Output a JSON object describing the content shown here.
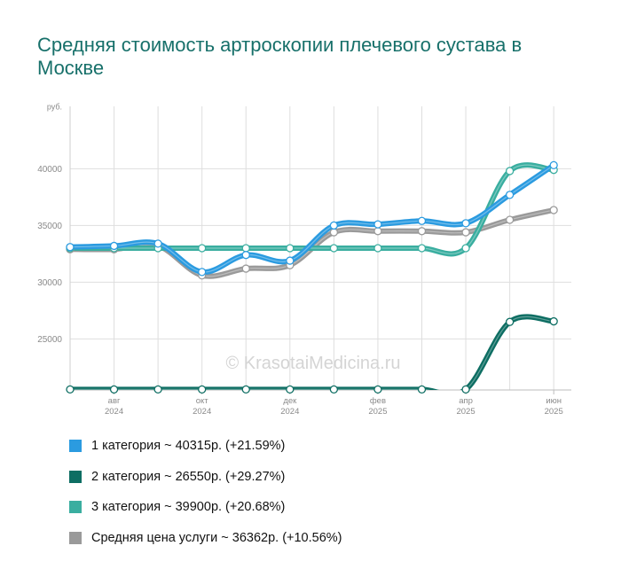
{
  "title": "Средняя стоимость артроскопии плечевого сустава в Москве",
  "watermark": "© KrasotaiMedicina.ru",
  "chart_data": {
    "type": "line",
    "ylabel": "руб.",
    "ylim": [
      20500,
      45500
    ],
    "yticks": [
      25000,
      30000,
      35000,
      40000
    ],
    "xlim": [
      0,
      11.4
    ],
    "x_ticks": [
      {
        "pos": 1,
        "label": [
          "авг",
          "2024"
        ]
      },
      {
        "pos": 3,
        "label": [
          "окт",
          "2024"
        ]
      },
      {
        "pos": 5,
        "label": [
          "дек",
          "2024"
        ]
      },
      {
        "pos": 7,
        "label": [
          "фев",
          "2025"
        ]
      },
      {
        "pos": 9,
        "label": [
          "апр",
          "2025"
        ]
      },
      {
        "pos": 11,
        "label": [
          "июн",
          "2025"
        ]
      }
    ],
    "x": [
      0,
      1,
      2,
      3,
      4,
      5,
      6,
      7,
      8,
      9,
      10,
      11
    ],
    "series": [
      {
        "name": "1 категория",
        "color": "#2b9be0",
        "values": [
          33100,
          33200,
          33400,
          30900,
          32400,
          31900,
          35000,
          35100,
          35400,
          35200,
          37700,
          40315
        ],
        "legend": "1 категория ~ 40315р. (+21.59%)"
      },
      {
        "name": "2 категория",
        "color": "#0e6e63",
        "values": [
          20550,
          20550,
          20550,
          20550,
          20550,
          20550,
          20550,
          20550,
          20550,
          20550,
          26500,
          26550
        ],
        "legend": "2 категория ~ 26550р. (+29.27%)"
      },
      {
        "name": "3 категория",
        "color": "#3aaea0",
        "values": [
          33000,
          33000,
          33000,
          33000,
          33000,
          33000,
          33000,
          33000,
          33000,
          33000,
          39800,
          39900
        ],
        "legend": "3 категория ~ 39900р. (+20.68%)"
      },
      {
        "name": "Средняя цена услуги",
        "color": "#9a9a9a",
        "values": [
          32900,
          32900,
          33200,
          30600,
          31200,
          31500,
          34400,
          34500,
          34500,
          34400,
          35500,
          36362
        ],
        "legend": "Средняя цена услуги ~ 36362р. (+10.56%)"
      }
    ],
    "grid": true,
    "legend_position": "bottom"
  }
}
